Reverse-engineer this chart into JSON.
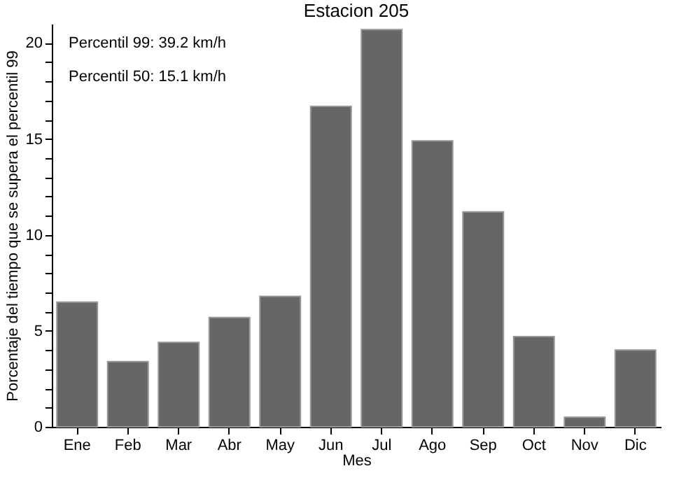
{
  "chart_data": {
    "type": "bar",
    "title": "Estacion 205",
    "xlabel": "Mes",
    "ylabel": "Porcentaje del tiempo que se supera el percentil 99",
    "categories": [
      "Ene",
      "Feb",
      "Mar",
      "Abr",
      "May",
      "Jun",
      "Jul",
      "Ago",
      "Sep",
      "Oct",
      "Nov",
      "Dic"
    ],
    "values": [
      6.5,
      3.4,
      4.4,
      5.7,
      6.8,
      16.7,
      20.7,
      14.9,
      11.2,
      4.7,
      0.5,
      4.0
    ],
    "color": "#666666",
    "ylim": [
      0,
      21
    ],
    "yticks": [
      0,
      {
        "value": 1,
        "label": null
      },
      {
        "value": 2,
        "label": null
      },
      {
        "value": 3,
        "label": null
      },
      {
        "value": 4,
        "label": null
      },
      5,
      {
        "value": 6,
        "label": null
      },
      {
        "value": 7,
        "label": null
      },
      {
        "value": 8,
        "label": null
      },
      {
        "value": 9,
        "label": null
      },
      10,
      {
        "value": 11,
        "label": null
      },
      {
        "value": 12,
        "label": null
      },
      {
        "value": 13,
        "label": null
      },
      {
        "value": 14,
        "label": null
      },
      15,
      {
        "value": 16,
        "label": null
      },
      {
        "value": 17,
        "label": null
      },
      {
        "value": 18,
        "label": null
      },
      {
        "value": 19,
        "label": null
      },
      20
    ],
    "annotations": [
      "Percentil 99: 39.2 km/h",
      "Percentil 50: 15.1 km/h"
    ],
    "grid": false
  }
}
